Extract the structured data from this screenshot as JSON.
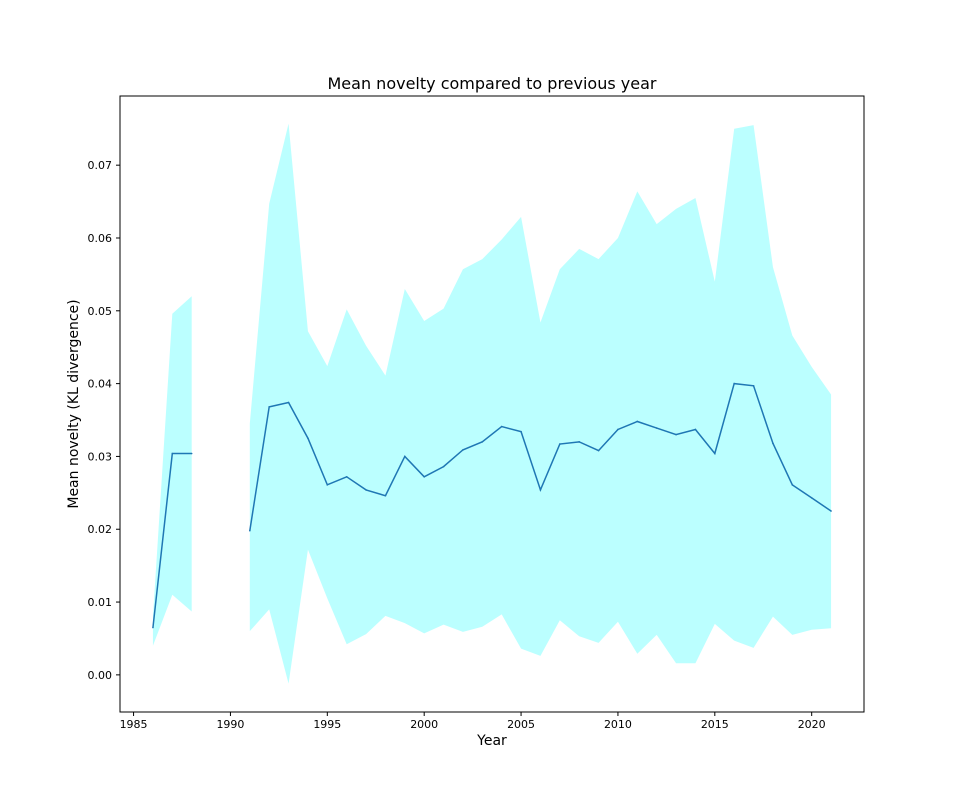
{
  "chart_data": {
    "type": "line",
    "title": "Mean novelty compared to previous year",
    "xlabel": "Year",
    "ylabel": "Mean novelty (KL divergence)",
    "xlim": [
      1984.3,
      2022.7
    ],
    "ylim": [
      -0.0051,
      0.0795
    ],
    "xticks": [
      1985,
      1990,
      1995,
      2000,
      2005,
      2010,
      2015,
      2020
    ],
    "yticks": [
      0.0,
      0.01,
      0.02,
      0.03,
      0.04,
      0.05,
      0.06,
      0.07
    ],
    "ytick_labels": [
      "0.00",
      "0.01",
      "0.02",
      "0.03",
      "0.04",
      "0.05",
      "0.06",
      "0.07"
    ],
    "grid": false,
    "line_color": "#1f77b4",
    "band_color": "#bbffff",
    "segments": [
      {
        "x": [
          1986,
          1987,
          1988
        ],
        "mean": [
          0.0065,
          0.0304,
          0.0304
        ],
        "lower": [
          0.004,
          0.011,
          0.0087
        ],
        "upper": [
          0.008,
          0.0496,
          0.052
        ]
      },
      {
        "x": [
          1991,
          1992,
          1993,
          1994,
          1995,
          1996,
          1997,
          1998,
          1999,
          2000,
          2001,
          2002,
          2003,
          2004,
          2005,
          2006,
          2007,
          2008,
          2009,
          2010,
          2011,
          2012,
          2013,
          2014,
          2015,
          2016,
          2017,
          2018,
          2019,
          2020,
          2021
        ],
        "mean": [
          0.0198,
          0.0368,
          0.0374,
          0.0325,
          0.0261,
          0.0272,
          0.0254,
          0.0246,
          0.03,
          0.0272,
          0.0286,
          0.0309,
          0.032,
          0.0341,
          0.0334,
          0.0254,
          0.0317,
          0.032,
          0.0308,
          0.0337,
          0.0348,
          0.0339,
          0.033,
          0.0337,
          0.0304,
          0.04,
          0.0397,
          0.0318,
          0.0261,
          0.0243,
          0.0225
        ],
        "lower": [
          0.006,
          0.009,
          -0.0012,
          0.0172,
          0.0105,
          0.0042,
          0.0056,
          0.0081,
          0.0071,
          0.0057,
          0.0069,
          0.0059,
          0.0066,
          0.0083,
          0.0036,
          0.0026,
          0.0075,
          0.0053,
          0.0044,
          0.0073,
          0.0029,
          0.0055,
          0.0016,
          0.0016,
          0.007,
          0.0047,
          0.0037,
          0.008,
          0.0055,
          0.0062,
          0.0064
        ],
        "upper": [
          0.0345,
          0.0647,
          0.0757,
          0.0472,
          0.0424,
          0.0502,
          0.0452,
          0.0411,
          0.053,
          0.0486,
          0.0503,
          0.0557,
          0.0571,
          0.0598,
          0.0629,
          0.0484,
          0.0557,
          0.0585,
          0.0571,
          0.06,
          0.0664,
          0.0619,
          0.064,
          0.0655,
          0.054,
          0.075,
          0.0755,
          0.056,
          0.0466,
          0.0423,
          0.0385
        ]
      }
    ]
  }
}
